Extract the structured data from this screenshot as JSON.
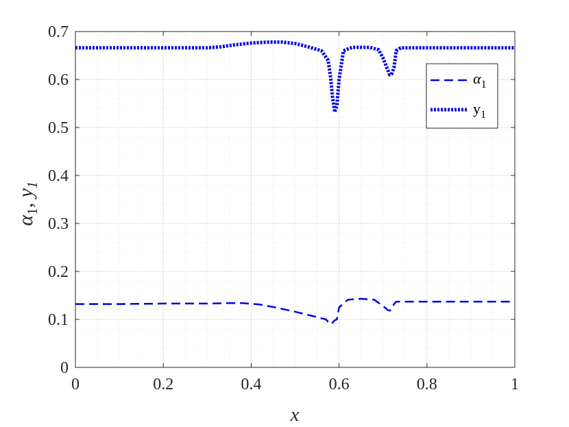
{
  "chart_data": {
    "type": "line",
    "title": "",
    "xlabel": "x",
    "ylabel": "α1, y1",
    "ylabel_parts": {
      "symbol1": "α",
      "sub1": "1",
      "sep": ", ",
      "symbol2": "y",
      "sub2": "1"
    },
    "xlim": [
      0,
      1
    ],
    "ylim": [
      0,
      0.7
    ],
    "xticks": [
      0,
      0.2,
      0.4,
      0.6,
      0.8,
      1
    ],
    "xtick_labels": [
      "0",
      "0.2",
      "0.4",
      "0.6",
      "0.8",
      "1"
    ],
    "yticks": [
      0,
      0.1,
      0.2,
      0.3,
      0.4,
      0.5,
      0.6,
      0.7
    ],
    "ytick_labels": [
      "0",
      "0.1",
      "0.2",
      "0.3",
      "0.4",
      "0.5",
      "0.6",
      "0.7"
    ],
    "grid": true,
    "minor_grid": true,
    "legend_position": "top-right",
    "series": [
      {
        "name": "α1",
        "name_symbol": "α",
        "name_sub": "1",
        "style": "dashed",
        "color": "#0000e6",
        "x": [
          0,
          0.1,
          0.2,
          0.3,
          0.35,
          0.38,
          0.42,
          0.46,
          0.5,
          0.54,
          0.57,
          0.58,
          0.585,
          0.59,
          0.595,
          0.6,
          0.62,
          0.65,
          0.68,
          0.7,
          0.71,
          0.715,
          0.72,
          0.725,
          0.73,
          0.75,
          0.8,
          0.9,
          1
        ],
        "y": [
          0.132,
          0.132,
          0.133,
          0.133,
          0.134,
          0.134,
          0.131,
          0.124,
          0.116,
          0.107,
          0.1,
          0.09,
          0.093,
          0.098,
          0.1,
          0.125,
          0.141,
          0.143,
          0.141,
          0.128,
          0.12,
          0.118,
          0.122,
          0.132,
          0.137,
          0.137,
          0.137,
          0.137,
          0.137
        ]
      },
      {
        "name": "y1",
        "name_symbol": "y",
        "name_sub": "1",
        "style": "dotted",
        "color": "#0000e6",
        "x": [
          0,
          0.1,
          0.2,
          0.3,
          0.33,
          0.36,
          0.4,
          0.44,
          0.47,
          0.5,
          0.53,
          0.56,
          0.575,
          0.58,
          0.585,
          0.59,
          0.595,
          0.6,
          0.61,
          0.63,
          0.67,
          0.69,
          0.7,
          0.71,
          0.715,
          0.72,
          0.725,
          0.73,
          0.74,
          0.8,
          0.9,
          1
        ],
        "y": [
          0.666,
          0.666,
          0.666,
          0.666,
          0.668,
          0.672,
          0.676,
          0.678,
          0.678,
          0.675,
          0.668,
          0.66,
          0.64,
          0.61,
          0.565,
          0.532,
          0.545,
          0.6,
          0.66,
          0.667,
          0.667,
          0.662,
          0.645,
          0.622,
          0.61,
          0.612,
          0.625,
          0.66,
          0.666,
          0.666,
          0.666,
          0.666
        ]
      }
    ]
  }
}
